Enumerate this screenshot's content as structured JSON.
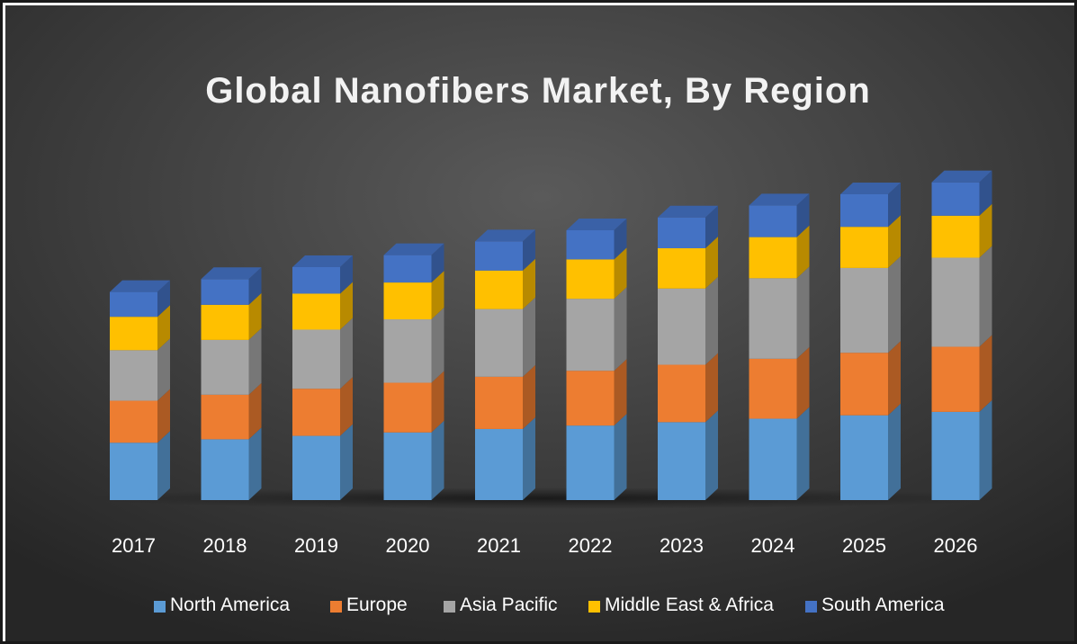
{
  "chart_data": {
    "type": "bar",
    "stacked": true,
    "style": "3d-stacked-column",
    "title": "Global Nanofibers Market, By Region",
    "xlabel": "",
    "ylabel": "",
    "y_axis_shown": false,
    "grid": false,
    "legend_position": "bottom",
    "categories": [
      "2017",
      "2018",
      "2019",
      "2020",
      "2021",
      "2022",
      "2023",
      "2024",
      "2025",
      "2026"
    ],
    "series": [
      {
        "name": "North America",
        "color": "#5b9bd5",
        "values": [
          67,
          71,
          75,
          79,
          83,
          87,
          91,
          95,
          99,
          103
        ]
      },
      {
        "name": "Europe",
        "color": "#ed7d31",
        "values": [
          49,
          52,
          55,
          58,
          61,
          64,
          67,
          70,
          73,
          76
        ]
      },
      {
        "name": "Asia Pacific",
        "color": "#a5a5a5",
        "values": [
          59,
          64,
          69,
          74,
          79,
          84,
          89,
          94,
          99,
          104
        ]
      },
      {
        "name": "Middle East & Africa",
        "color": "#ffc000",
        "values": [
          39,
          41,
          42,
          43,
          45,
          46,
          47,
          48,
          48,
          49
        ]
      },
      {
        "name": "South America",
        "color": "#4472c4",
        "values": [
          29,
          30,
          31,
          32,
          34,
          34,
          36,
          37,
          38,
          39
        ]
      }
    ],
    "ylim": [
      0,
      420
    ]
  },
  "colors": {
    "background_inner": "#595959",
    "background_outer": "#262626",
    "text": "#ffffff"
  }
}
